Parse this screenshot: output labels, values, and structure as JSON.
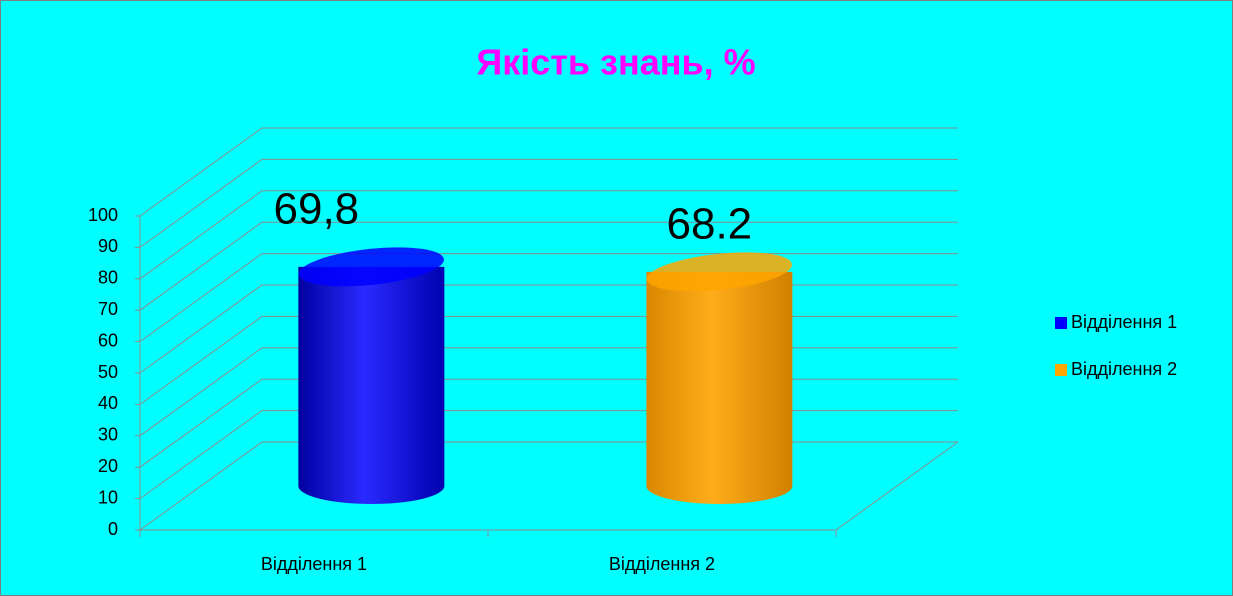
{
  "chart_data": {
    "type": "bar3d",
    "title": "Якість знань, %",
    "categories": [
      "Відділення 1",
      "Відділення 2"
    ],
    "series": [
      {
        "name": "Відділення 1",
        "color": "#0000ff",
        "values": [
          69.8,
          null
        ],
        "value_labels": [
          "69,8",
          null
        ]
      },
      {
        "name": "Відділення 2",
        "color": "#ffa500",
        "values": [
          null,
          68.2
        ]
      }
    ],
    "ylim": [
      0,
      100
    ],
    "yticks": [
      0,
      10,
      20,
      30,
      40,
      50,
      60,
      70,
      80,
      90,
      100
    ],
    "grid": true,
    "legend": "right"
  }
}
